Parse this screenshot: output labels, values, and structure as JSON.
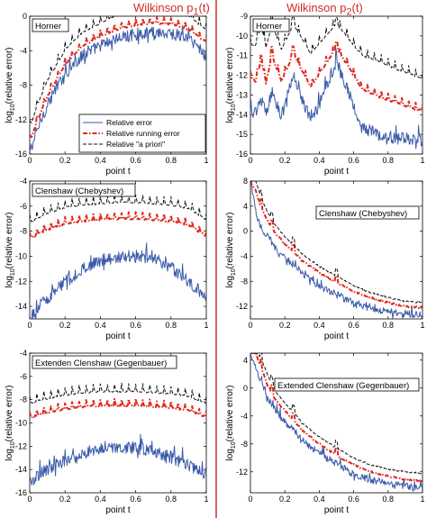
{
  "columns": [
    {
      "title": "Wilkinson p",
      "subscript": "1",
      "suffix": "(t)"
    },
    {
      "title": "Wilkinson p",
      "subscript": "2",
      "suffix": "(t)"
    }
  ],
  "colors": {
    "relative_error": "#3a5aa8",
    "running_error": "#e0281e",
    "a_priori": "#111111",
    "column_divider": "#d42a2a"
  },
  "legend_labels": [
    "Relative error",
    "Relative running error",
    "Relative \"a priori\""
  ],
  "chart_data": [
    {
      "type": "line",
      "panel": "left-top",
      "annotation": "Horner",
      "xlabel": "point t",
      "ylabel": "log10(relative error)",
      "xlim": [
        0,
        1
      ],
      "ylim": [
        -16,
        0
      ],
      "xticks": [
        "0",
        "0.2",
        "0.4",
        "0.6",
        "0.8",
        "1"
      ],
      "yticks": [
        "0",
        "-4",
        "-8",
        "-12",
        "-16"
      ],
      "legend": "bottom-left",
      "series": [
        {
          "name": "Relative error",
          "x": [
            0,
            0.05,
            0.1,
            0.2,
            0.3,
            0.4,
            0.5,
            0.6,
            0.7,
            0.8,
            0.9,
            0.95,
            1
          ],
          "y": [
            -16,
            -13,
            -10.5,
            -6.8,
            -4.8,
            -3.6,
            -2.8,
            -2.3,
            -2.1,
            -2.2,
            -2.8,
            -3.6,
            -5
          ]
        },
        {
          "name": "Relative running error",
          "x": [
            0,
            0.05,
            0.1,
            0.2,
            0.3,
            0.4,
            0.5,
            0.6,
            0.7,
            0.8,
            0.9,
            0.95,
            1
          ],
          "y": [
            -14.5,
            -11.8,
            -9.3,
            -5.6,
            -3.5,
            -2.3,
            -1.5,
            -1,
            -0.8,
            -0.9,
            -1.5,
            -2.3,
            -3
          ]
        },
        {
          "name": "Relative \"a priori\"",
          "x": [
            0,
            0.05,
            0.1,
            0.2,
            0.3,
            0.4,
            0.5,
            0.6,
            0.7,
            0.8,
            0.9,
            0.95,
            1
          ],
          "y": [
            -13,
            -10,
            -7.5,
            -3.9,
            -1.9,
            -0.8,
            0.2,
            0.6,
            0.8,
            0.7,
            0.1,
            -0.8,
            -1.5
          ]
        }
      ]
    },
    {
      "type": "line",
      "panel": "right-top",
      "annotation": "Horner",
      "xlabel": "point t",
      "ylabel": "log10(relative error)",
      "xlim": [
        0,
        1
      ],
      "ylim": [
        -16,
        -9
      ],
      "xticks": [
        "0",
        "0.2",
        "0.4",
        "0.6",
        "0.8",
        "1"
      ],
      "yticks": [
        "-9",
        "-10",
        "-11",
        "-12",
        "-13",
        "-14",
        "-15",
        "-16"
      ],
      "series": [
        {
          "name": "Relative error",
          "x": [
            0,
            0.03,
            0.0625,
            0.09,
            0.125,
            0.18,
            0.25,
            0.35,
            0.5,
            0.65,
            0.75,
            0.85,
            0.95,
            1
          ],
          "y": [
            -14,
            -13.9,
            -13.3,
            -14,
            -12.9,
            -14.2,
            -12.1,
            -14.4,
            -11.4,
            -14.8,
            -15.1,
            -15.3,
            -15.3,
            -15.4
          ]
        },
        {
          "name": "Relative running error",
          "x": [
            0,
            0.03,
            0.0625,
            0.09,
            0.125,
            0.18,
            0.25,
            0.35,
            0.5,
            0.65,
            0.75,
            0.85,
            0.95,
            1
          ],
          "y": [
            -12.1,
            -12.3,
            -11.2,
            -12.4,
            -11,
            -12.3,
            -10.9,
            -12.6,
            -10.6,
            -12.7,
            -13.1,
            -13.4,
            -13.7,
            -13.8
          ]
        },
        {
          "name": "Relative \"a priori\"",
          "x": [
            0,
            0.03,
            0.0625,
            0.09,
            0.125,
            0.18,
            0.25,
            0.35,
            0.5,
            0.65,
            0.75,
            0.85,
            0.95,
            1
          ],
          "y": [
            -10.5,
            -10.5,
            -9.4,
            -10.6,
            -9.4,
            -10.7,
            -9.4,
            -10.9,
            -9.4,
            -11,
            -11.3,
            -11.7,
            -12,
            -12.2
          ]
        }
      ]
    },
    {
      "type": "line",
      "panel": "left-middle",
      "annotation": "Clenshaw (Chebyshev)",
      "xlabel": "point t",
      "ylabel": "log10(relative error)",
      "xlim": [
        0,
        1
      ],
      "ylim": [
        -15,
        -4
      ],
      "xticks": [
        "0",
        "0.2",
        "0.4",
        "0.6",
        "0.8",
        "1"
      ],
      "yticks": [
        "-4",
        "-6",
        "-8",
        "-10",
        "-12",
        "-14"
      ],
      "series": [
        {
          "name": "Relative error",
          "x": [
            0,
            0.05,
            0.1,
            0.2,
            0.3,
            0.4,
            0.5,
            0.6,
            0.7,
            0.8,
            0.9,
            1
          ],
          "y": [
            -15,
            -14.2,
            -13.5,
            -12.2,
            -11.2,
            -10.5,
            -10.2,
            -10.1,
            -10.3,
            -11,
            -12.2,
            -13.3
          ]
        },
        {
          "name": "Relative running error",
          "x": [
            0,
            0.05,
            0.1,
            0.2,
            0.3,
            0.4,
            0.5,
            0.6,
            0.7,
            0.8,
            0.9,
            1
          ],
          "y": [
            -8.6,
            -8.2,
            -7.9,
            -7.4,
            -7.2,
            -7.1,
            -7,
            -7,
            -7.1,
            -7.2,
            -7.5,
            -8.4
          ]
        },
        {
          "name": "Relative \"a priori\"",
          "x": [
            0,
            0.05,
            0.1,
            0.2,
            0.3,
            0.4,
            0.5,
            0.6,
            0.7,
            0.8,
            0.9,
            1
          ],
          "y": [
            -7.3,
            -6.9,
            -6.6,
            -6.1,
            -5.9,
            -5.8,
            -5.7,
            -5.7,
            -5.8,
            -5.9,
            -6.2,
            -7.1
          ]
        }
      ]
    },
    {
      "type": "line",
      "panel": "right-middle",
      "annotation": "Clenshaw (Chebyshev)",
      "xlabel": "point t",
      "ylabel": "log10(relative error)",
      "xlim": [
        0,
        1
      ],
      "ylim": [
        -14,
        8
      ],
      "xticks": [
        "0",
        "0.2",
        "0.4",
        "0.6",
        "0.8",
        "1"
      ],
      "yticks": [
        "8",
        "4",
        "0",
        "-4",
        "-8",
        "-12"
      ],
      "series": [
        {
          "name": "Relative error",
          "x": [
            0,
            0.03,
            0.06,
            0.1,
            0.15,
            0.2,
            0.25,
            0.3,
            0.4,
            0.5,
            0.6,
            0.7,
            0.8,
            0.9,
            1
          ],
          "y": [
            8,
            3,
            0.5,
            -1,
            -3,
            -4.5,
            -5.5,
            -6.8,
            -9,
            -10.2,
            -11.8,
            -12.5,
            -13,
            -13.3,
            -13.6
          ]
        },
        {
          "name": "Relative running error",
          "x": [
            0,
            0.03,
            0.06,
            0.1,
            0.15,
            0.2,
            0.25,
            0.3,
            0.4,
            0.5,
            0.6,
            0.7,
            0.8,
            0.9,
            1
          ],
          "y": [
            8,
            6.5,
            4,
            1.6,
            -0.5,
            -2,
            -3.3,
            -4.7,
            -6.6,
            -8.2,
            -9.6,
            -10.6,
            -11.4,
            -12,
            -12.2
          ]
        },
        {
          "name": "Relative \"a priori\"",
          "x": [
            0,
            0.03,
            0.06,
            0.1,
            0.15,
            0.2,
            0.25,
            0.3,
            0.4,
            0.5,
            0.6,
            0.7,
            0.8,
            0.9,
            1
          ],
          "y": [
            8,
            8,
            5.5,
            3,
            0.8,
            -0.8,
            -2.2,
            -3.6,
            -5.6,
            -7.2,
            -8.7,
            -9.8,
            -10.6,
            -11.2,
            -11.4
          ]
        }
      ]
    },
    {
      "type": "line",
      "panel": "left-bottom",
      "annotation": "Extenden Clenshaw (Gegenbauer)",
      "xlabel": "point t",
      "ylabel": "log10(relative error)",
      "xlim": [
        0,
        1
      ],
      "ylim": [
        -16,
        -4
      ],
      "xticks": [
        "0",
        "0.2",
        "0.4",
        "0.6",
        "0.8",
        "1"
      ],
      "yticks": [
        "-4",
        "-6",
        "-8",
        "-10",
        "-12",
        "-14",
        "-16"
      ],
      "series": [
        {
          "name": "Relative error",
          "x": [
            0,
            0.05,
            0.1,
            0.2,
            0.3,
            0.4,
            0.5,
            0.6,
            0.7,
            0.8,
            0.9,
            1
          ],
          "y": [
            -15.3,
            -14.6,
            -14.2,
            -13.4,
            -12.8,
            -12.3,
            -12.2,
            -12.3,
            -12.6,
            -13.1,
            -13.8,
            -14.6
          ]
        },
        {
          "name": "Relative running error",
          "x": [
            0,
            0.05,
            0.1,
            0.2,
            0.3,
            0.4,
            0.5,
            0.6,
            0.7,
            0.8,
            0.9,
            1
          ],
          "y": [
            -9.6,
            -9.3,
            -9.1,
            -8.8,
            -8.6,
            -8.5,
            -8.5,
            -8.5,
            -8.6,
            -8.7,
            -8.9,
            -9.5
          ]
        },
        {
          "name": "Relative \"a priori\"",
          "x": [
            0,
            0.05,
            0.1,
            0.2,
            0.3,
            0.4,
            0.5,
            0.6,
            0.7,
            0.8,
            0.9,
            1
          ],
          "y": [
            -8.4,
            -8.1,
            -7.9,
            -7.6,
            -7.4,
            -7.3,
            -7.3,
            -7.3,
            -7.4,
            -7.5,
            -7.7,
            -8.3
          ]
        }
      ]
    },
    {
      "type": "line",
      "panel": "right-bottom",
      "annotation": "Extended Clenshaw (Gegenbauer)",
      "xlabel": "point t",
      "ylabel": "log10(relative error)",
      "xlim": [
        0,
        1
      ],
      "ylim": [
        -15,
        5
      ],
      "xticks": [
        "0",
        "0.2",
        "0.4",
        "0.6",
        "0.8",
        "1"
      ],
      "yticks": [
        "4",
        "0",
        "-4",
        "-8",
        "-12"
      ],
      "series": [
        {
          "name": "Relative error",
          "x": [
            0,
            0.03,
            0.06,
            0.1,
            0.15,
            0.2,
            0.25,
            0.3,
            0.4,
            0.5,
            0.6,
            0.7,
            0.8,
            0.9,
            1
          ],
          "y": [
            5,
            3,
            0.8,
            -1.5,
            -3.5,
            -5,
            -6.2,
            -7.6,
            -9.5,
            -11,
            -12.5,
            -13.3,
            -13.8,
            -14.2,
            -14.5
          ]
        },
        {
          "name": "Relative running error",
          "x": [
            0,
            0.03,
            0.06,
            0.1,
            0.15,
            0.2,
            0.25,
            0.3,
            0.4,
            0.5,
            0.6,
            0.7,
            0.8,
            0.9,
            1
          ],
          "y": [
            5,
            5,
            3,
            0.4,
            -1.8,
            -3.2,
            -4.6,
            -6,
            -8,
            -9.6,
            -11,
            -12,
            -12.6,
            -13.1,
            -13.3
          ]
        },
        {
          "name": "Relative \"a priori\"",
          "x": [
            0,
            0.03,
            0.06,
            0.1,
            0.15,
            0.2,
            0.25,
            0.3,
            0.4,
            0.5,
            0.6,
            0.7,
            0.8,
            0.9,
            1
          ],
          "y": [
            5,
            5,
            4.5,
            1.8,
            -0.6,
            -2.1,
            -3.5,
            -5,
            -7,
            -8.6,
            -10,
            -11,
            -11.6,
            -12,
            -12.2
          ]
        }
      ]
    }
  ]
}
